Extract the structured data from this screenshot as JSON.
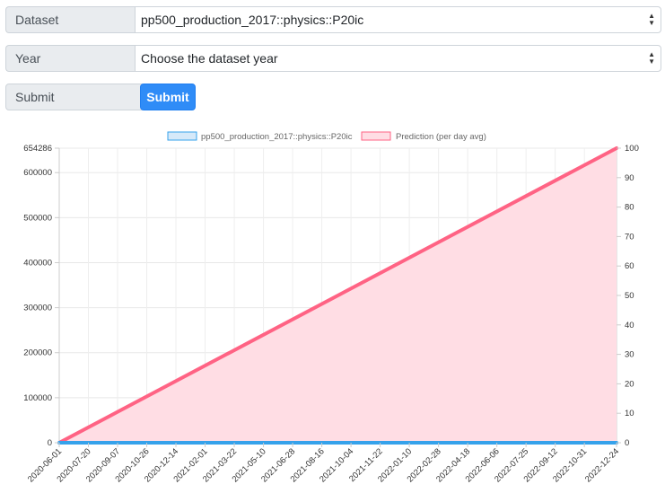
{
  "form": {
    "dataset": {
      "label": "Dataset",
      "value": "pp500_production_2017::physics::P20ic"
    },
    "year": {
      "label": "Year",
      "value": "Choose the dataset year"
    },
    "submit": {
      "label": "Submit",
      "button_label": "Submit"
    }
  },
  "chart_data": {
    "type": "line",
    "legend": [
      "pp500_production_2017::physics::P20ic",
      "Prediction (per day avg)"
    ],
    "legend_placement": "top",
    "x_ticks": [
      "2020-06-01",
      "2020-07-20",
      "2020-09-07",
      "2020-10-26",
      "2020-12-14",
      "2021-02-01",
      "2021-03-22",
      "2021-05-10",
      "2021-06-28",
      "2021-08-16",
      "2021-10-04",
      "2021-11-22",
      "2022-01-10",
      "2022-02-28",
      "2022-04-18",
      "2022-06-06",
      "2022-07-25",
      "2022-09-12",
      "2022-10-31",
      "2022-12-24"
    ],
    "y_left_ticks": [
      "0",
      "100000",
      "200000",
      "300000",
      "400000",
      "500000",
      "600000",
      "654286"
    ],
    "y_right_ticks": [
      "0",
      "10",
      "20",
      "30",
      "40",
      "50",
      "60",
      "70",
      "80",
      "90",
      "100"
    ],
    "y_left_range": [
      0,
      654286
    ],
    "y_right_range": [
      0,
      100
    ],
    "grid": true,
    "series": [
      {
        "name": "pp500_production_2017::physics::P20ic",
        "axis": "right",
        "x": [
          "2020-06-01",
          "2022-12-24"
        ],
        "values": [
          0,
          0
        ],
        "color": "#36a2eb",
        "fill": "#d6e9f9"
      },
      {
        "name": "Prediction (per day avg)",
        "axis": "left",
        "x": [
          "2020-06-01",
          "2022-12-24"
        ],
        "values": [
          0,
          654286
        ],
        "color": "#ff6384",
        "fill": "#ffdde4"
      }
    ]
  }
}
